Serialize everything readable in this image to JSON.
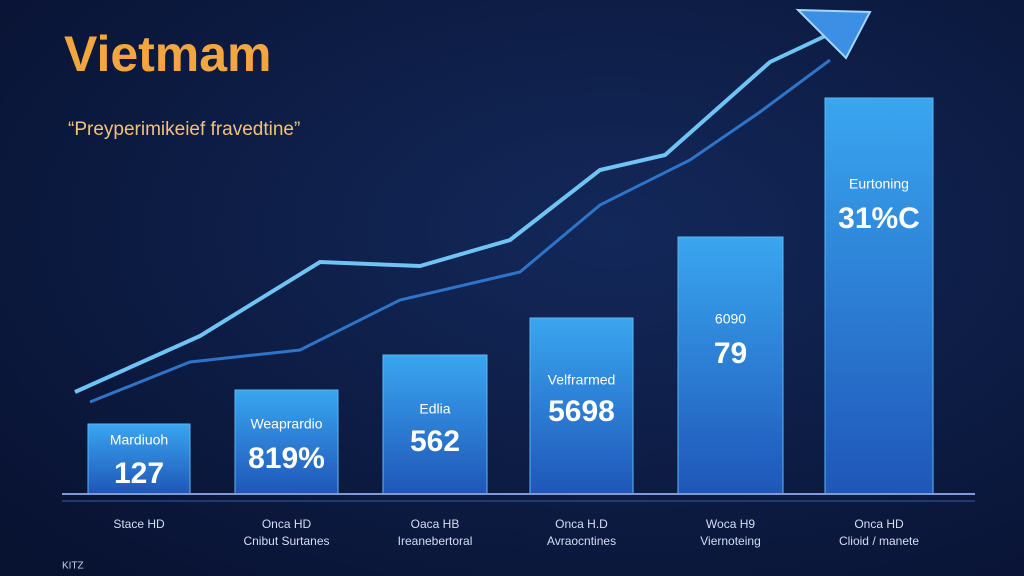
{
  "header": {
    "title": "Vietmam",
    "subtitle": "“Preyperimikeief fravedtine”"
  },
  "bars": [
    {
      "label": "Mardiuoh",
      "value": "127",
      "caption": [
        "Stace HD"
      ]
    },
    {
      "label": "Weaprardio",
      "value": "819%",
      "caption": [
        "Onca HD",
        "Cnibut Surtanes"
      ]
    },
    {
      "label": "Edlia",
      "value": "562",
      "caption": [
        "Oaca HB",
        "Ireanebertoral"
      ]
    },
    {
      "label": "Velfrarmed",
      "value": "5698",
      "caption": [
        "Onca H.D",
        "Avraocntines"
      ]
    },
    {
      "label": "6090",
      "value": "79",
      "caption": [
        "Woca H9",
        "Viernoteing"
      ]
    },
    {
      "label": "Eurtoning",
      "value": "31%C",
      "caption": [
        "Onca HD",
        "Clioid / manete"
      ]
    }
  ],
  "footer": "KITZ"
}
